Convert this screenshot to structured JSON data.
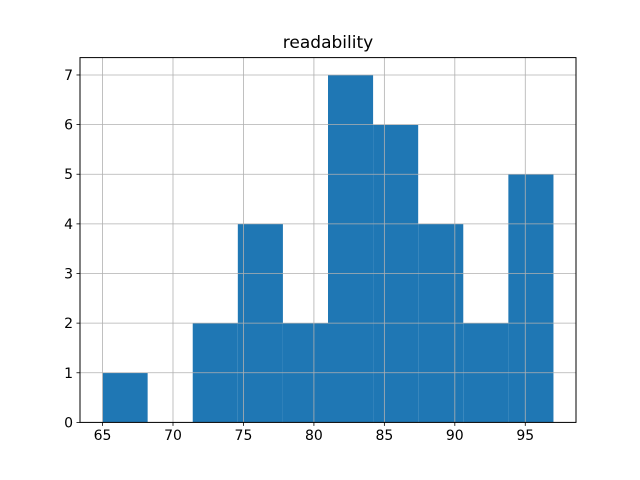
{
  "figure": {
    "background": "#ffffff"
  },
  "chart_data": {
    "type": "bar",
    "variant": "histogram",
    "title": "readability",
    "xlabel": "",
    "ylabel": "",
    "bin_edges": [
      65.0,
      68.2,
      71.4,
      74.6,
      77.8,
      81.0,
      84.2,
      87.4,
      90.6,
      93.8,
      97.0
    ],
    "counts": [
      1,
      0,
      2,
      4,
      2,
      7,
      6,
      4,
      2,
      5
    ],
    "xticks": [
      65,
      70,
      75,
      80,
      85,
      90,
      95
    ],
    "yticks": [
      0,
      1,
      2,
      3,
      4,
      5,
      6,
      7
    ],
    "xlim": [
      63.4,
      98.6
    ],
    "ylim": [
      0,
      7.35
    ],
    "grid": true,
    "legend": "none",
    "bar_color": "#1f77b4",
    "grid_color": "#b0b0b0",
    "spine_color": "#000000",
    "tick_color": "#000000"
  }
}
